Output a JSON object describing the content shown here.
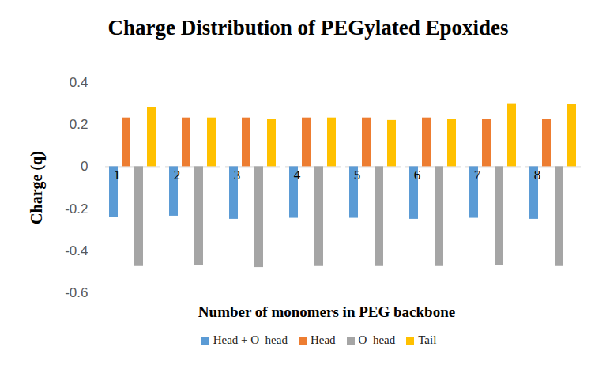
{
  "chart_data": {
    "type": "bar",
    "title": "Charge Distribution of PEGylated Epoxides",
    "xlabel": "Number of monomers in PEG backbone",
    "ylabel": "Charge (q)",
    "categories": [
      "1",
      "2",
      "3",
      "4",
      "5",
      "6",
      "7",
      "8"
    ],
    "series": [
      {
        "name": "Head + O_head",
        "color": "#5b9bd5",
        "values": [
          -0.24,
          -0.235,
          -0.25,
          -0.245,
          -0.245,
          -0.25,
          -0.245,
          -0.25
        ]
      },
      {
        "name": "Head",
        "color": "#ed7d31",
        "values": [
          0.232,
          0.232,
          0.232,
          0.232,
          0.232,
          0.232,
          0.225,
          0.225
        ]
      },
      {
        "name": "O_head",
        "color": "#a5a5a5",
        "values": [
          -0.475,
          -0.47,
          -0.48,
          -0.475,
          -0.475,
          -0.475,
          -0.47,
          -0.475
        ]
      },
      {
        "name": "Tail",
        "color": "#ffc000",
        "values": [
          0.28,
          0.232,
          0.225,
          0.232,
          0.22,
          0.225,
          0.3,
          0.295
        ]
      }
    ],
    "ylim": [
      -0.6,
      0.4
    ],
    "yticks": [
      -0.6,
      -0.4,
      -0.2,
      0,
      0.2,
      0.4
    ],
    "legend": "bottom"
  }
}
